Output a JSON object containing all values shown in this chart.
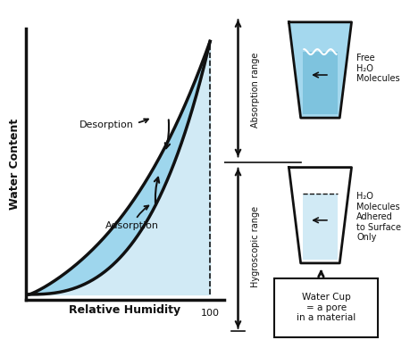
{
  "xlabel": "Relative Humidity",
  "ylabel": "Water Content",
  "x100_label": "100",
  "desorption_label": "Desorption",
  "adsorption_label": "Adsorption",
  "absorption_range_label": "Absorption range",
  "hygroscopic_range_label": "Hygroscopic range",
  "free_h2o_label": "Free\nH₂O\nMolecules",
  "h2o_molecules_label": "H₂O\nMolecules\nAdhered\nto Surface\nOnly",
  "water_cup_label": "Water Cup\n= a pore\nin a material",
  "fill_color": "#8dcfea",
  "fill_light": "#cce8f4",
  "fill_alpha": 0.85,
  "line_color": "#111111",
  "background_color": "#ffffff"
}
